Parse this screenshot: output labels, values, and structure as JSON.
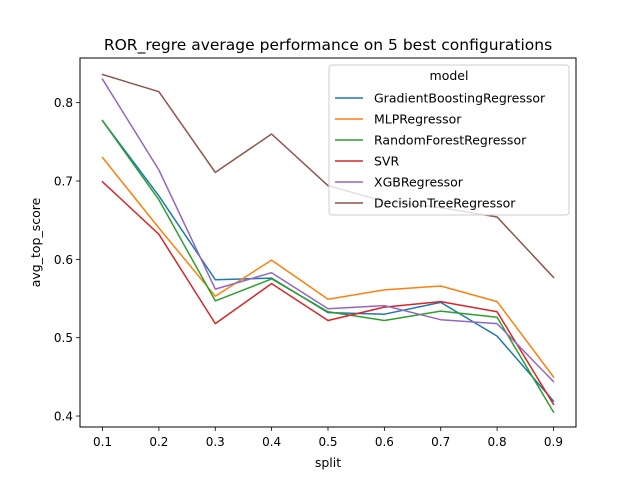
{
  "chart_data": {
    "type": "line",
    "title": "ROR_regre average performance on 5 best configurations",
    "xlabel": "split",
    "ylabel": "avg_top_score",
    "x": [
      0.1,
      0.2,
      0.3,
      0.4,
      0.5,
      0.6,
      0.7,
      0.8,
      0.9
    ],
    "xticks": [
      "0.1",
      "0.2",
      "0.3",
      "0.4",
      "0.5",
      "0.6",
      "0.7",
      "0.8",
      "0.9"
    ],
    "yticks": [
      "0.4",
      "0.5",
      "0.6",
      "0.7",
      "0.8"
    ],
    "xlim": [
      0.06,
      0.94
    ],
    "ylim": [
      0.386,
      0.857
    ],
    "grid": false,
    "legend": {
      "title": "model",
      "placement": "top-right"
    },
    "series": [
      {
        "name": "GradientBoostingRegressor",
        "color": "#1f77b4",
        "values": [
          0.777,
          0.681,
          0.574,
          0.576,
          0.532,
          0.53,
          0.545,
          0.502,
          0.419
        ]
      },
      {
        "name": "MLPRegressor",
        "color": "#ff7f0e",
        "values": [
          0.73,
          0.64,
          0.553,
          0.599,
          0.549,
          0.561,
          0.566,
          0.546,
          0.45
        ]
      },
      {
        "name": "RandomForestRegressor",
        "color": "#2ca02c",
        "values": [
          0.777,
          0.676,
          0.547,
          0.575,
          0.533,
          0.522,
          0.534,
          0.526,
          0.405
        ]
      },
      {
        "name": "SVR",
        "color": "#d62728",
        "values": [
          0.699,
          0.632,
          0.518,
          0.569,
          0.522,
          0.539,
          0.546,
          0.533,
          0.415
        ]
      },
      {
        "name": "XGBRegressor",
        "color": "#9467bd",
        "values": [
          0.83,
          0.714,
          0.562,
          0.583,
          0.537,
          0.541,
          0.523,
          0.518,
          0.444
        ]
      },
      {
        "name": "DecisionTreeRegressor",
        "color": "#8c564b",
        "values": [
          0.836,
          0.814,
          0.711,
          0.76,
          0.694,
          0.674,
          0.666,
          0.654,
          0.577
        ]
      }
    ]
  }
}
